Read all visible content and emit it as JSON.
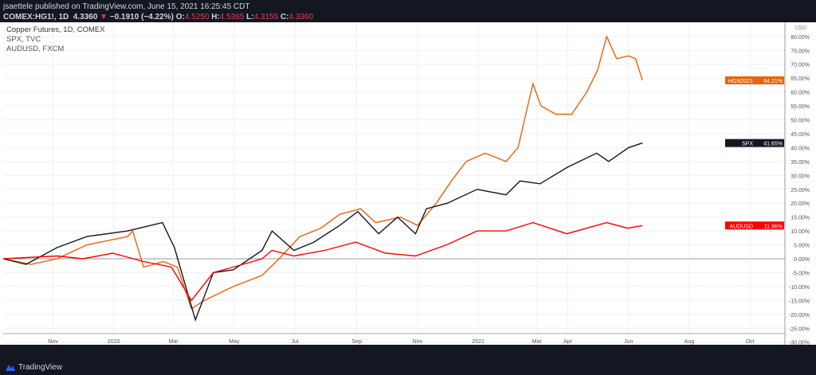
{
  "header": {
    "publisher": "jsaettele",
    "published_text": "published on TradingView.com, June 15, 2021 16:25:45 CDT",
    "symbol": "COMEX:HG1!, 1D",
    "last": "4.3360",
    "change": "−0.1910 (−4.22%)",
    "o_label": "O:",
    "o": "4.5250",
    "h_label": "H:",
    "h": "4.5365",
    "l_label": "L:",
    "l": "4.3155",
    "c_label": "C:",
    "c": "4.3360"
  },
  "legend": [
    "Copper Futures, 1D, COMEX",
    "SPX, TVC",
    "AUDUSD, FXCM"
  ],
  "footer": {
    "brand": "TradingView"
  },
  "chart_data": {
    "type": "line",
    "currency": "USD",
    "ylim": [
      -32,
      85
    ],
    "grid": true,
    "y_ticks": [
      "80.00%",
      "75.00%",
      "70.00%",
      "65.00%",
      "60.00%",
      "55.00%",
      "50.00%",
      "45.00%",
      "40.00%",
      "35.00%",
      "30.00%",
      "25.00%",
      "20.00%",
      "15.00%",
      "10.00%",
      "5.00%",
      "0.00%",
      "-5.00%",
      "-10.00%",
      "-15.00%",
      "-20.00%",
      "-25.00%",
      "-30.00%"
    ],
    "x_ticks": [
      {
        "label": "Nov",
        "date": "2019-11-01"
      },
      {
        "label": "2020",
        "date": "2020-01-01"
      },
      {
        "label": "Mar",
        "date": "2020-03-01"
      },
      {
        "label": "May",
        "date": "2020-05-01"
      },
      {
        "label": "Jul",
        "date": "2020-07-01"
      },
      {
        "label": "Sep",
        "date": "2020-09-01"
      },
      {
        "label": "Nov",
        "date": "2020-11-01"
      },
      {
        "label": "2021",
        "date": "2021-01-01"
      },
      {
        "label": "Mar",
        "date": "2021-03-01"
      },
      {
        "label": "Apr",
        "date": "2021-04-01"
      },
      {
        "label": "Jun",
        "date": "2021-06-01"
      },
      {
        "label": "Aug",
        "date": "2021-08-01"
      },
      {
        "label": "Oct",
        "date": "2021-10-01"
      }
    ],
    "xlim": [
      "2019-09-12",
      "2021-11-05"
    ],
    "series": [
      {
        "name": "HGN2021",
        "last_label": "64.21%",
        "color": "#e8630a",
        "points": [
          [
            "2019-09-12",
            0
          ],
          [
            "2019-10-10",
            -2
          ],
          [
            "2019-11-05",
            0
          ],
          [
            "2019-12-05",
            5
          ],
          [
            "2020-01-15",
            8
          ],
          [
            "2020-01-20",
            10
          ],
          [
            "2020-01-31",
            -3
          ],
          [
            "2020-02-20",
            -1
          ],
          [
            "2020-03-05",
            -3
          ],
          [
            "2020-03-19",
            -18
          ],
          [
            "2020-04-01",
            -15
          ],
          [
            "2020-04-30",
            -10
          ],
          [
            "2020-05-29",
            -6
          ],
          [
            "2020-06-15",
            0
          ],
          [
            "2020-07-06",
            8
          ],
          [
            "2020-07-27",
            11
          ],
          [
            "2020-08-15",
            16
          ],
          [
            "2020-09-05",
            18
          ],
          [
            "2020-09-20",
            13
          ],
          [
            "2020-10-15",
            15
          ],
          [
            "2020-11-01",
            12
          ],
          [
            "2020-11-20",
            20
          ],
          [
            "2020-12-05",
            28
          ],
          [
            "2020-12-20",
            35
          ],
          [
            "2021-01-08",
            38
          ],
          [
            "2021-01-29",
            35
          ],
          [
            "2021-02-10",
            40
          ],
          [
            "2021-02-25",
            63
          ],
          [
            "2021-03-05",
            55
          ],
          [
            "2021-03-20",
            52
          ],
          [
            "2021-04-05",
            52
          ],
          [
            "2021-04-20",
            60
          ],
          [
            "2021-05-01",
            68
          ],
          [
            "2021-05-10",
            80
          ],
          [
            "2021-05-20",
            72
          ],
          [
            "2021-06-01",
            73
          ],
          [
            "2021-06-08",
            72
          ],
          [
            "2021-06-15",
            64.21
          ]
        ]
      },
      {
        "name": "SPX",
        "last_label": "41.65%",
        "color": "#131722",
        "points": [
          [
            "2019-09-12",
            0
          ],
          [
            "2019-10-05",
            -2
          ],
          [
            "2019-11-05",
            4
          ],
          [
            "2019-12-05",
            8
          ],
          [
            "2020-01-15",
            10
          ],
          [
            "2020-02-19",
            13
          ],
          [
            "2020-03-02",
            4
          ],
          [
            "2020-03-23",
            -22
          ],
          [
            "2020-04-10",
            -5
          ],
          [
            "2020-04-30",
            -4
          ],
          [
            "2020-05-29",
            3
          ],
          [
            "2020-06-08",
            10
          ],
          [
            "2020-06-30",
            3
          ],
          [
            "2020-07-20",
            6
          ],
          [
            "2020-08-15",
            12
          ],
          [
            "2020-09-02",
            17
          ],
          [
            "2020-09-23",
            9
          ],
          [
            "2020-10-12",
            15
          ],
          [
            "2020-10-30",
            9
          ],
          [
            "2020-11-10",
            18
          ],
          [
            "2020-12-01",
            20
          ],
          [
            "2020-12-31",
            25
          ],
          [
            "2021-01-29",
            23
          ],
          [
            "2021-02-12",
            28
          ],
          [
            "2021-03-04",
            27
          ],
          [
            "2021-04-01",
            33
          ],
          [
            "2021-04-30",
            38
          ],
          [
            "2021-05-12",
            35
          ],
          [
            "2021-06-01",
            40
          ],
          [
            "2021-06-15",
            41.65
          ]
        ]
      },
      {
        "name": "AUDUSD",
        "last_label": "11.96%",
        "color": "#ff0000",
        "points": [
          [
            "2019-09-12",
            0
          ],
          [
            "2019-11-05",
            1
          ],
          [
            "2019-12-01",
            0
          ],
          [
            "2019-12-31",
            2
          ],
          [
            "2020-01-31",
            -1
          ],
          [
            "2020-02-28",
            -3
          ],
          [
            "2020-03-19",
            -15
          ],
          [
            "2020-04-10",
            -5
          ],
          [
            "2020-04-30",
            -3
          ],
          [
            "2020-05-29",
            0
          ],
          [
            "2020-06-08",
            3
          ],
          [
            "2020-06-30",
            1
          ],
          [
            "2020-07-31",
            3
          ],
          [
            "2020-08-31",
            6
          ],
          [
            "2020-09-30",
            2
          ],
          [
            "2020-10-30",
            1
          ],
          [
            "2020-11-30",
            5
          ],
          [
            "2020-12-31",
            10
          ],
          [
            "2021-01-29",
            10
          ],
          [
            "2021-02-25",
            13
          ],
          [
            "2021-03-31",
            9
          ],
          [
            "2021-04-30",
            12
          ],
          [
            "2021-05-10",
            13
          ],
          [
            "2021-05-31",
            11
          ],
          [
            "2021-06-15",
            11.96
          ]
        ]
      }
    ]
  }
}
